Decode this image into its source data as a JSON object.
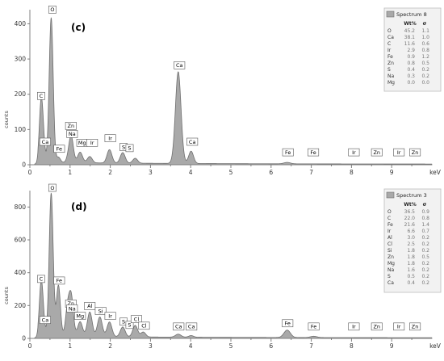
{
  "chart_data": [
    {
      "type": "area",
      "panel_label": "(c)",
      "xlabel": "keV",
      "ylabel": "counts",
      "xlim": [
        0,
        10
      ],
      "ylim": [
        0,
        440
      ],
      "x_ticks": [
        "0",
        "1",
        "2",
        "3",
        "4",
        "5",
        "6",
        "7",
        "8",
        "9"
      ],
      "y_ticks": [
        "0",
        "100",
        "200",
        "300",
        "400"
      ],
      "grid": false,
      "peaks": [
        {
          "x": 0.28,
          "h": 170,
          "w": 0.045
        },
        {
          "x": 0.34,
          "h": 40,
          "w": 0.04
        },
        {
          "x": 0.53,
          "h": 410,
          "w": 0.05
        },
        {
          "x": 0.71,
          "h": 15,
          "w": 0.05
        },
        {
          "x": 1.01,
          "h": 50,
          "w": 0.06
        },
        {
          "x": 1.04,
          "h": 30,
          "w": 0.05
        },
        {
          "x": 1.25,
          "h": 30,
          "w": 0.06
        },
        {
          "x": 1.49,
          "h": 18,
          "w": 0.06
        },
        {
          "x": 1.98,
          "h": 38,
          "w": 0.06
        },
        {
          "x": 2.31,
          "h": 30,
          "w": 0.06
        },
        {
          "x": 2.62,
          "h": 14,
          "w": 0.06
        },
        {
          "x": 3.69,
          "h": 260,
          "w": 0.07
        },
        {
          "x": 4.01,
          "h": 35,
          "w": 0.06
        },
        {
          "x": 6.4,
          "h": 4,
          "w": 0.08
        }
      ],
      "peak_labels": [
        {
          "t": "C",
          "x": 0.28,
          "y": 185
        },
        {
          "t": "O",
          "x": 0.56,
          "y": 430
        },
        {
          "t": "Ca",
          "x": 0.38,
          "y": 55
        },
        {
          "t": "Fe",
          "x": 0.73,
          "y": 35
        },
        {
          "t": "Zn",
          "x": 1.02,
          "y": 100
        },
        {
          "t": "Na",
          "x": 1.05,
          "y": 77
        },
        {
          "t": "Mg",
          "x": 1.3,
          "y": 52
        },
        {
          "t": "Ir",
          "x": 1.55,
          "y": 52
        },
        {
          "t": "Ir",
          "x": 2.0,
          "y": 65
        },
        {
          "t": "S",
          "x": 2.33,
          "y": 40
        },
        {
          "t": "S",
          "x": 2.48,
          "y": 37
        },
        {
          "t": "Ca",
          "x": 3.72,
          "y": 272
        },
        {
          "t": "Ca",
          "x": 4.04,
          "y": 55
        },
        {
          "t": "Fe",
          "x": 6.42,
          "y": 25
        },
        {
          "t": "Fe",
          "x": 7.05,
          "y": 25
        },
        {
          "t": "Ir",
          "x": 8.06,
          "y": 25
        },
        {
          "t": "Zn",
          "x": 8.63,
          "y": 25
        },
        {
          "t": "Ir",
          "x": 9.18,
          "y": 25
        },
        {
          "t": "Zn",
          "x": 9.58,
          "y": 25
        }
      ],
      "legend": {
        "title": "Spectrum 8",
        "col1": "Wt%",
        "col2": "σ",
        "rows": [
          [
            "O",
            "45.2",
            "1.1"
          ],
          [
            "Ca",
            "38.1",
            "1.0"
          ],
          [
            "C",
            "11.6",
            "0.6"
          ],
          [
            "Ir",
            "2.9",
            "0.8"
          ],
          [
            "Fe",
            "0.9",
            "1.2"
          ],
          [
            "Zn",
            "0.8",
            "0.5"
          ],
          [
            "S",
            "0.4",
            "0.2"
          ],
          [
            "Na",
            "0.3",
            "0.2"
          ],
          [
            "Mg",
            "0.0",
            "0.0"
          ]
        ]
      }
    },
    {
      "type": "area",
      "panel_label": "(d)",
      "xlabel": "keV",
      "ylabel": "counts",
      "xlim": [
        0,
        10
      ],
      "ylim": [
        0,
        900
      ],
      "x_ticks": [
        "0",
        "1",
        "2",
        "3",
        "4",
        "5",
        "6",
        "7",
        "8",
        "9"
      ],
      "y_ticks": [
        "0",
        "200",
        "400",
        "600",
        "800"
      ],
      "grid": false,
      "peaks": [
        {
          "x": 0.28,
          "h": 320,
          "w": 0.045
        },
        {
          "x": 0.34,
          "h": 60,
          "w": 0.04
        },
        {
          "x": 0.53,
          "h": 870,
          "w": 0.05
        },
        {
          "x": 0.71,
          "h": 310,
          "w": 0.05
        },
        {
          "x": 0.93,
          "h": 130,
          "w": 0.05
        },
        {
          "x": 1.01,
          "h": 160,
          "w": 0.06
        },
        {
          "x": 1.04,
          "h": 100,
          "w": 0.05
        },
        {
          "x": 1.25,
          "h": 90,
          "w": 0.06
        },
        {
          "x": 1.49,
          "h": 150,
          "w": 0.06
        },
        {
          "x": 1.74,
          "h": 120,
          "w": 0.06
        },
        {
          "x": 1.98,
          "h": 90,
          "w": 0.06
        },
        {
          "x": 2.31,
          "h": 60,
          "w": 0.06
        },
        {
          "x": 2.62,
          "h": 70,
          "w": 0.06
        },
        {
          "x": 2.82,
          "h": 30,
          "w": 0.06
        },
        {
          "x": 3.69,
          "h": 18,
          "w": 0.07
        },
        {
          "x": 4.01,
          "h": 10,
          "w": 0.06
        },
        {
          "x": 6.4,
          "h": 45,
          "w": 0.08
        },
        {
          "x": 7.06,
          "h": 8,
          "w": 0.08
        }
      ],
      "peak_labels": [
        {
          "t": "C",
          "x": 0.28,
          "y": 340
        },
        {
          "t": "O",
          "x": 0.56,
          "y": 895
        },
        {
          "t": "Ca",
          "x": 0.38,
          "y": 90
        },
        {
          "t": "Fe",
          "x": 0.73,
          "y": 330
        },
        {
          "t": "Zn",
          "x": 1.02,
          "y": 190
        },
        {
          "t": "Na",
          "x": 1.05,
          "y": 160
        },
        {
          "t": "Mg",
          "x": 1.25,
          "y": 115
        },
        {
          "t": "Al",
          "x": 1.49,
          "y": 175
        },
        {
          "t": "Si",
          "x": 1.76,
          "y": 145
        },
        {
          "t": "Ir",
          "x": 2.0,
          "y": 115
        },
        {
          "t": "S",
          "x": 2.33,
          "y": 80
        },
        {
          "t": "S",
          "x": 2.48,
          "y": 60
        },
        {
          "t": "Cl",
          "x": 2.65,
          "y": 95
        },
        {
          "t": "Cl",
          "x": 2.84,
          "y": 55
        },
        {
          "t": "Ca",
          "x": 3.7,
          "y": 50
        },
        {
          "t": "Ca",
          "x": 4.02,
          "y": 50
        },
        {
          "t": "Fe",
          "x": 6.41,
          "y": 70
        },
        {
          "t": "Fe",
          "x": 7.06,
          "y": 50
        },
        {
          "t": "Ir",
          "x": 8.06,
          "y": 50
        },
        {
          "t": "Zn",
          "x": 8.63,
          "y": 50
        },
        {
          "t": "Ir",
          "x": 9.18,
          "y": 50
        },
        {
          "t": "Zn",
          "x": 9.58,
          "y": 50
        }
      ],
      "legend": {
        "title": "Spectrum 3",
        "col1": "Wt%",
        "col2": "σ",
        "rows": [
          [
            "O",
            "36.5",
            "0.9"
          ],
          [
            "C",
            "22.0",
            "0.8"
          ],
          [
            "Fe",
            "21.6",
            "1.4"
          ],
          [
            "Ir",
            "6.6",
            "0.7"
          ],
          [
            "Al",
            "3.0",
            "0.2"
          ],
          [
            "Cl",
            "2.5",
            "0.2"
          ],
          [
            "Si",
            "1.8",
            "0.2"
          ],
          [
            "Zn",
            "1.8",
            "0.5"
          ],
          [
            "Mg",
            "1.8",
            "0.2"
          ],
          [
            "Na",
            "1.6",
            "0.2"
          ],
          [
            "S",
            "0.5",
            "0.2"
          ],
          [
            "Ca",
            "0.4",
            "0.2"
          ]
        ]
      }
    }
  ]
}
